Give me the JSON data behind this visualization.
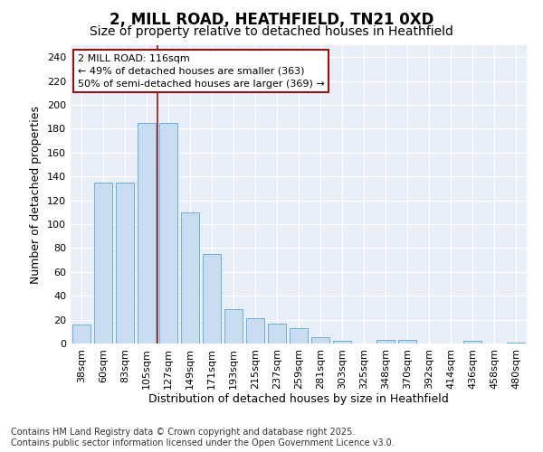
{
  "title1": "2, MILL ROAD, HEATHFIELD, TN21 0XD",
  "title2": "Size of property relative to detached houses in Heathfield",
  "xlabel": "Distribution of detached houses by size in Heathfield",
  "ylabel": "Number of detached properties",
  "categories": [
    "38sqm",
    "60sqm",
    "83sqm",
    "105sqm",
    "127sqm",
    "149sqm",
    "171sqm",
    "193sqm",
    "215sqm",
    "237sqm",
    "259sqm",
    "281sqm",
    "303sqm",
    "325sqm",
    "348sqm",
    "370sqm",
    "392sqm",
    "414sqm",
    "436sqm",
    "458sqm",
    "480sqm"
  ],
  "values": [
    16,
    135,
    135,
    185,
    185,
    110,
    75,
    29,
    21,
    17,
    13,
    5,
    2,
    0,
    3,
    3,
    0,
    0,
    2,
    0,
    1
  ],
  "bar_color": "#c9ddf2",
  "bar_edge_color": "#6baed6",
  "fig_background": "#ffffff",
  "ax_background": "#e8eef7",
  "grid_color": "#ffffff",
  "vline_x": 3.5,
  "vline_color": "#9b1111",
  "annotation_text": "2 MILL ROAD: 116sqm\n← 49% of detached houses are smaller (363)\n50% of semi-detached houses are larger (369) →",
  "ylim": [
    0,
    250
  ],
  "yticks": [
    0,
    20,
    40,
    60,
    80,
    100,
    120,
    140,
    160,
    180,
    200,
    220,
    240
  ],
  "footer": "Contains HM Land Registry data © Crown copyright and database right 2025.\nContains public sector information licensed under the Open Government Licence v3.0.",
  "title1_fontsize": 12,
  "title2_fontsize": 10,
  "axis_label_fontsize": 9,
  "tick_fontsize": 8,
  "annotation_fontsize": 8,
  "footer_fontsize": 7
}
